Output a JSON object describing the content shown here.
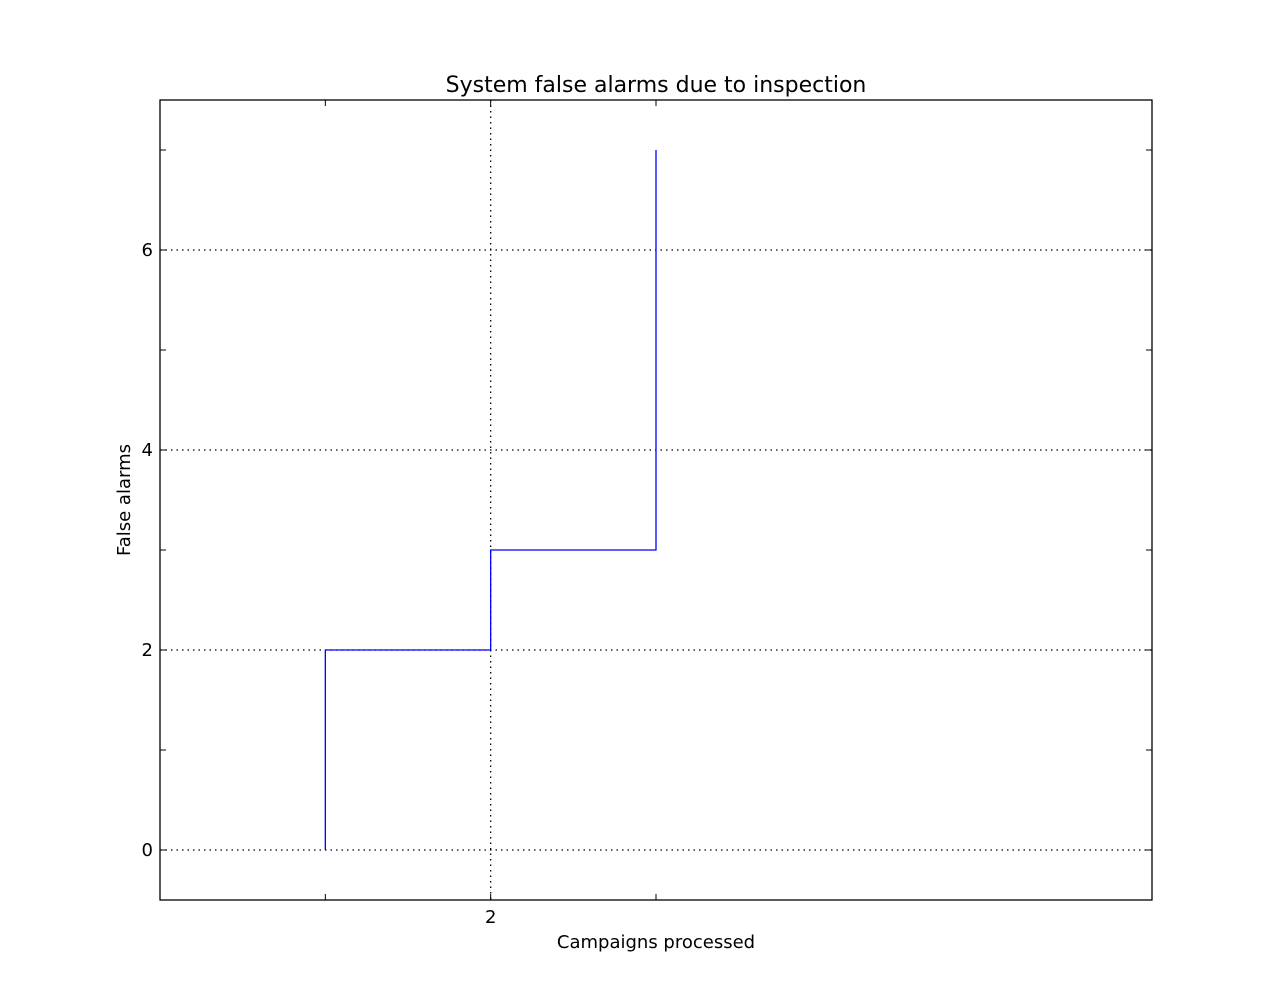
{
  "chart_data": {
    "type": "line",
    "drawstyle": "steps",
    "title": "System false alarms due to inspection",
    "xlabel": "Campaigns processed",
    "ylabel": "False alarms",
    "xlim": [
      1.5,
      3.0
    ],
    "ylim": [
      -0.5,
      7.5
    ],
    "x_ticks_labeled": [
      2
    ],
    "x_ticks_minor": [
      1.75,
      2.25
    ],
    "y_ticks_labeled": [
      0,
      2,
      4,
      6
    ],
    "y_ticks_minor": [
      1,
      3,
      5,
      7
    ],
    "grid": true,
    "legend": "none",
    "series": [
      {
        "color": "#0000ff",
        "x": [
          1.75,
          1.75,
          2.0,
          2.0,
          2.25,
          2.25
        ],
        "y": [
          0,
          2,
          2,
          3,
          3,
          7
        ]
      }
    ]
  }
}
